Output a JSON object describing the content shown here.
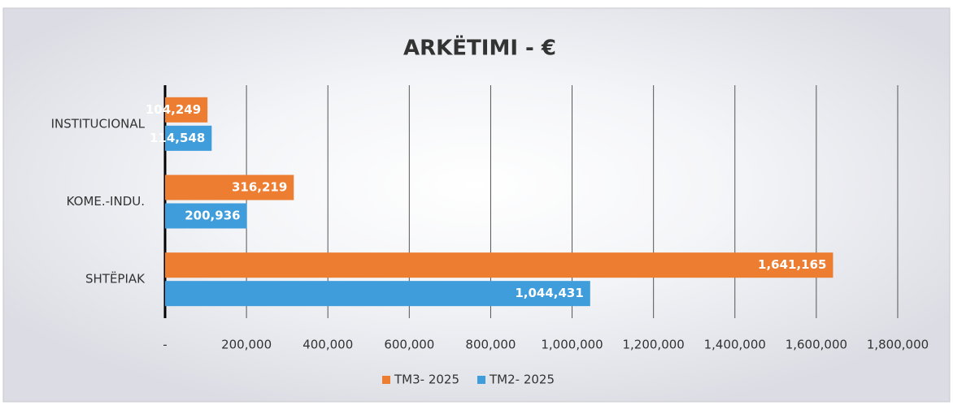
{
  "chart_data": {
    "type": "hbar",
    "title": "ARKËTIMI - €",
    "categories": [
      "INSTITUCIONAL",
      "KOME.-INDU.",
      "SHTËPIAK"
    ],
    "series": [
      {
        "name": "TM3- 2025",
        "color": "#ed7d31",
        "values": [
          104249,
          316219,
          1641165
        ],
        "value_labels": [
          "104,249",
          "316,219",
          "1,641,165"
        ]
      },
      {
        "name": "TM2- 2025",
        "color": "#3f9ddb",
        "values": [
          114548,
          200936,
          1044431
        ],
        "value_labels": [
          "114,548",
          "200,936",
          "1,044,431"
        ]
      }
    ],
    "xlim": [
      0,
      1800000
    ],
    "xticks": [
      {
        "value": 0,
        "label": "-"
      },
      {
        "value": 200000,
        "label": "200,000"
      },
      {
        "value": 400000,
        "label": "400,000"
      },
      {
        "value": 600000,
        "label": "600,000"
      },
      {
        "value": 800000,
        "label": "800,000"
      },
      {
        "value": 1000000,
        "label": "1,000,000"
      },
      {
        "value": 1200000,
        "label": "1,200,000"
      },
      {
        "value": 1400000,
        "label": "1,400,000"
      },
      {
        "value": 1600000,
        "label": "1,600,000"
      },
      {
        "value": 1800000,
        "label": "1,800,000"
      }
    ],
    "grid": true,
    "legend": "bottom"
  }
}
